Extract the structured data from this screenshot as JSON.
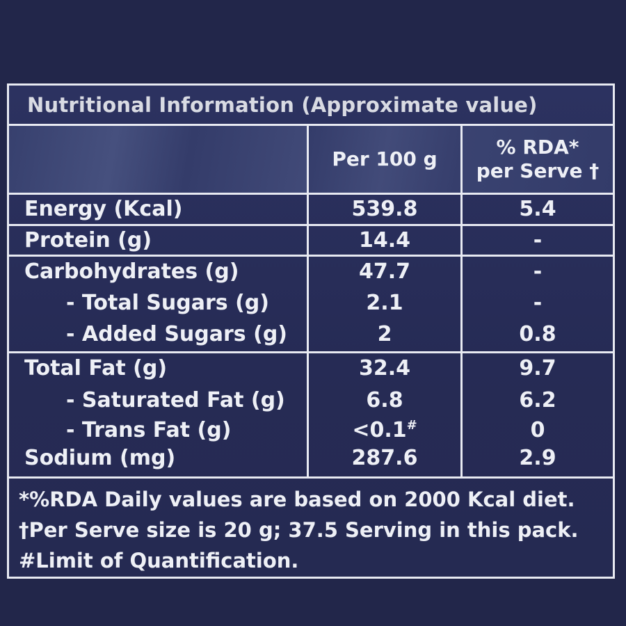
{
  "title": "Nutritional Information (Approximate value)",
  "header": {
    "per_100g": "Per 100 g",
    "rda_per_serve": "% RDA* per Serve †"
  },
  "rows": [
    {
      "label": "Energy (Kcal)",
      "per100g": "539.8",
      "rda": "5.4"
    },
    {
      "label": "Protein (g)",
      "per100g": "14.4",
      "rda": "-"
    },
    {
      "label": "Carbohydrates (g)",
      "per100g": "47.7",
      "rda": "-"
    },
    {
      "label": "- Total Sugars (g)",
      "per100g": "2.1",
      "rda": "-"
    },
    {
      "label": "- Added Sugars (g)",
      "per100g": "2",
      "rda": "0.8"
    },
    {
      "label": "Total Fat (g)",
      "per100g": "32.4",
      "rda": "9.7"
    },
    {
      "label": "- Saturated Fat (g)",
      "per100g": "6.8",
      "rda": "6.2"
    },
    {
      "label": "- Trans Fat (g)",
      "per100g": "<0.1",
      "per100g_mark": "#",
      "rda": "0"
    },
    {
      "label": "Sodium (mg)",
      "per100g": "287.6",
      "rda": "2.9"
    }
  ],
  "footnotes": [
    "*%RDA Daily values are based on 2000 Kcal diet.",
    "†Per Serve size is 20 g; 37.5 Serving in this pack.",
    "#Limit of Quantification."
  ],
  "colors": {
    "background": "#22264a",
    "panel": "#2a2f58",
    "rule": "#e8eaf2",
    "text": "#eef0f6"
  }
}
